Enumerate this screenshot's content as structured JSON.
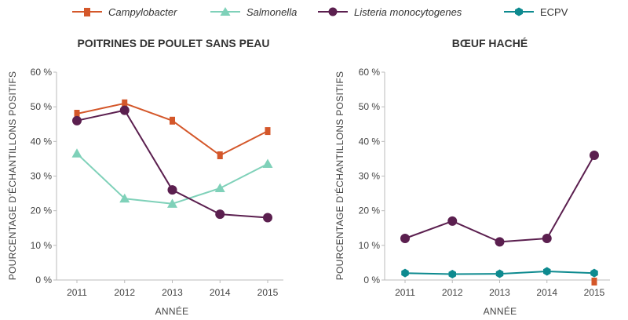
{
  "legend": {
    "campylobacter": "Campylobacter",
    "salmonella": "Salmonella",
    "listeria": "Listeria monocytogenes",
    "ecpv": "ECPV"
  },
  "colors": {
    "campylobacter": "#d4572a",
    "salmonella": "#7fd1b9",
    "listeria": "#5b1f4f",
    "ecpv": "#0d8a8f"
  },
  "chart_data": [
    {
      "type": "line",
      "title": "POITRINES DE POULET SANS PEAU",
      "xlabel": "ANNÉE",
      "ylabel": "POURCENTAGE D'ÉCHANTILLONS POSITIFS",
      "x": [
        "2011",
        "2012",
        "2013",
        "2014",
        "2015"
      ],
      "ylim": [
        0,
        60
      ],
      "yticks": [
        "0 %",
        "10 %",
        "20 %",
        "30 %",
        "40 %",
        "50 %",
        "60 %"
      ],
      "series": [
        {
          "name": "Campylobacter",
          "key": "campylobacter",
          "marker": "bar",
          "values": [
            48,
            51,
            46,
            36,
            43
          ]
        },
        {
          "name": "Salmonella",
          "key": "salmonella",
          "marker": "triangle",
          "values": [
            36.5,
            23.5,
            22,
            26.5,
            33.5
          ]
        },
        {
          "name": "Listeria monocytogenes",
          "key": "listeria",
          "marker": "circle",
          "values": [
            46,
            49,
            26,
            19,
            18
          ]
        }
      ]
    },
    {
      "type": "line",
      "title": "BŒUF HACHÉ",
      "xlabel": "ANNÉE",
      "ylabel": "POURCENTAGE D'ÉCHANTILLONS POSITIFS",
      "x": [
        "2011",
        "2012",
        "2013",
        "2014",
        "2015"
      ],
      "ylim": [
        0,
        60
      ],
      "yticks": [
        "0 %",
        "10 %",
        "20 %",
        "30 %",
        "40 %",
        "50 %",
        "60 %"
      ],
      "series": [
        {
          "name": "Listeria monocytogenes",
          "key": "listeria",
          "marker": "circle",
          "values": [
            12,
            17,
            11,
            12,
            36
          ]
        },
        {
          "name": "ECPV",
          "key": "ecpv",
          "marker": "hexagon",
          "values": [
            2,
            1.7,
            1.8,
            2.5,
            2
          ]
        },
        {
          "name": "Campylobacter",
          "key": "campylobacter",
          "marker": "bar",
          "values": [
            null,
            null,
            null,
            null,
            0
          ]
        }
      ]
    }
  ]
}
